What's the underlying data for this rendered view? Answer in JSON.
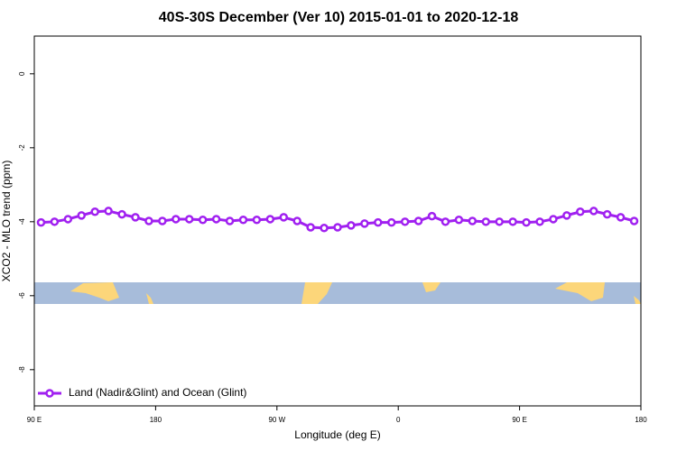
{
  "chart_data": {
    "type": "line",
    "title": "40S-30S December (Ver 10)   2015-01-01 to 2020-12-18",
    "x_label": "Longitude (deg E)",
    "y_label": "XCO2 - MLO trend (ppm)",
    "x": [
      95,
      105,
      115,
      125,
      135,
      145,
      155,
      165,
      175,
      185,
      195,
      205,
      215,
      225,
      235,
      245,
      255,
      265,
      275,
      285,
      295,
      305,
      315,
      325,
      335,
      345,
      355,
      365,
      375,
      385,
      395,
      405,
      415,
      425,
      435,
      445,
      455,
      465,
      475,
      485,
      495,
      505,
      515,
      525,
      535
    ],
    "series": [
      {
        "name": "Land (Nadir&Glint) and Ocean (Glint)",
        "color": "#a020f0",
        "values": [
          -4.02,
          -4.0,
          -3.93,
          -3.83,
          -3.73,
          -3.71,
          -3.8,
          -3.88,
          -3.98,
          -3.98,
          -3.93,
          -3.93,
          -3.95,
          -3.93,
          -3.98,
          -3.95,
          -3.95,
          -3.93,
          -3.88,
          -3.98,
          -4.15,
          -4.17,
          -4.15,
          -4.1,
          -4.05,
          -4.02,
          -4.02,
          -4.0,
          -3.98,
          -3.85,
          -4.0,
          -3.95,
          -3.98,
          -4.0,
          -4.0,
          -4.0,
          -4.02,
          -4.0,
          -3.93,
          -3.83,
          -3.73,
          -3.71,
          -3.8,
          -3.88,
          -3.98
        ]
      }
    ],
    "xlim": [
      90,
      540
    ],
    "xticks": [
      {
        "value": 90,
        "label": "90 E"
      },
      180,
      {
        "value": 270,
        "label": "90 W"
      },
      {
        "value": 360,
        "label": "0"
      },
      {
        "value": 450,
        "label": "90 E"
      },
      {
        "value": 540,
        "label": "180"
      }
    ],
    "ylim": [
      -8.98,
      1.02
    ],
    "yticks": [
      0,
      -2,
      -4,
      -6,
      -8
    ],
    "legend": "bottom-left",
    "grid": false
  }
}
